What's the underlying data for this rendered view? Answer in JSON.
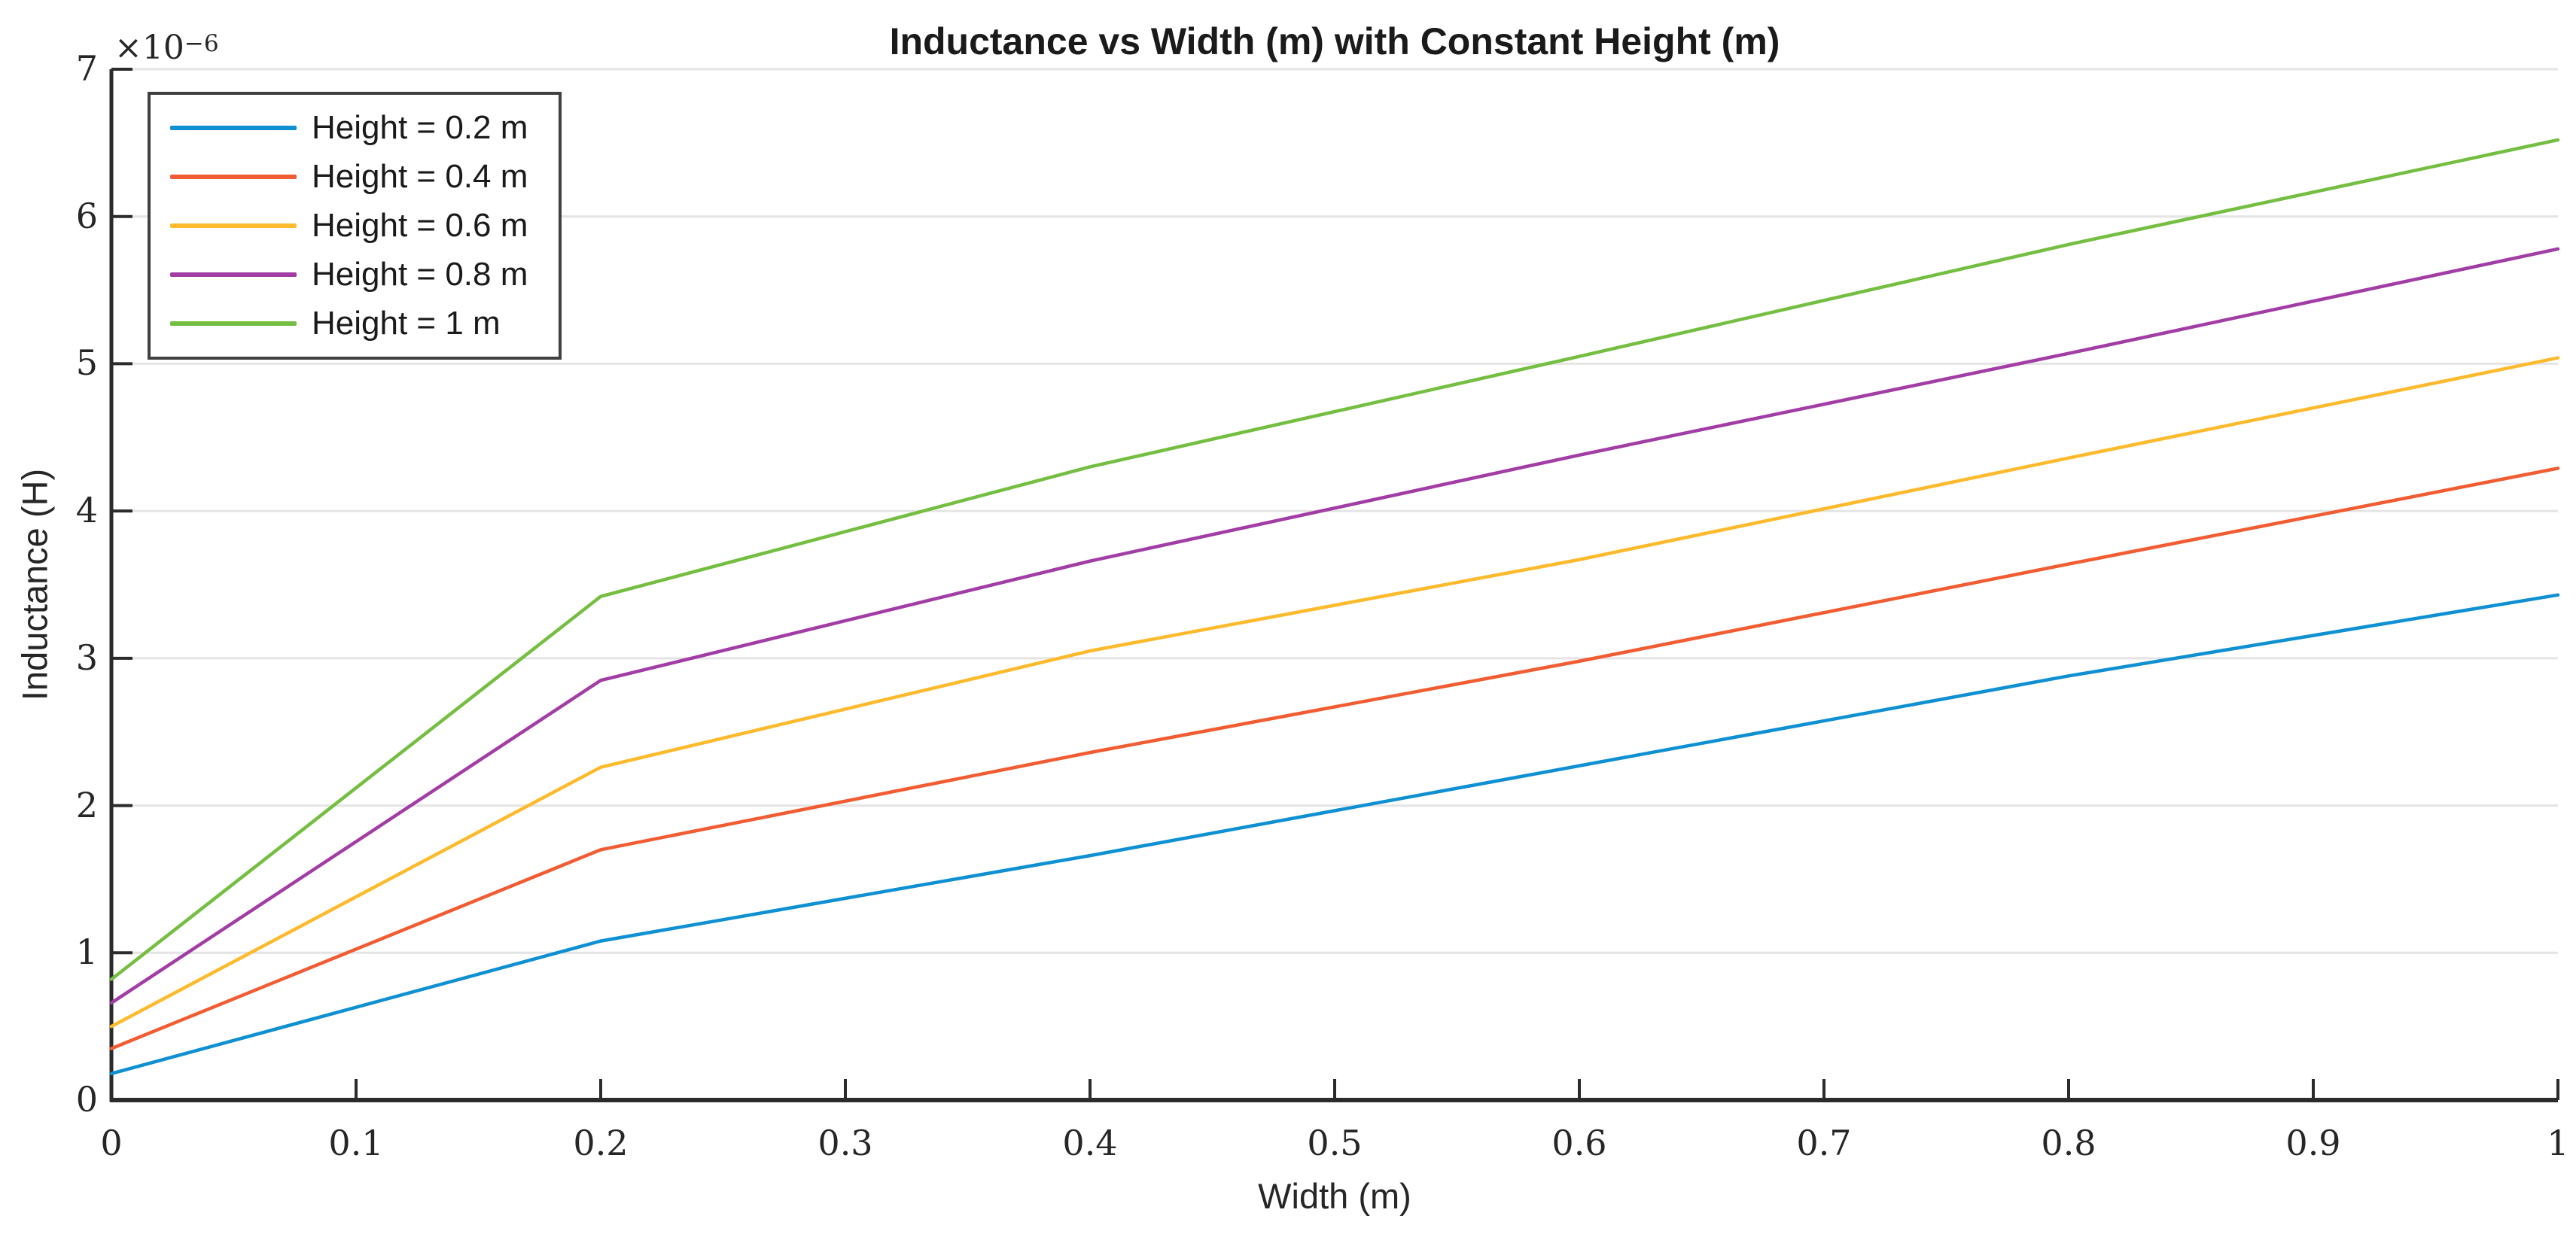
{
  "title": "Inductance vs Width (m) with Constant Height (m)",
  "axes": {
    "x_label": "Width (m)",
    "y_label": "Inductance (H)",
    "y_exponent_base": "×10",
    "y_exponent_power": "−6"
  },
  "legend": {
    "entries": [
      {
        "label": "Height = 0.2 m",
        "color": "#0E90D2"
      },
      {
        "label": "Height = 0.4 m",
        "color": "#F25C32"
      },
      {
        "label": "Height = 0.6 m",
        "color": "#FDBA2C"
      },
      {
        "label": "Height = 0.8 m",
        "color": "#A23DA5"
      },
      {
        "label": "Height = 1 m",
        "color": "#74BE41"
      }
    ]
  },
  "chart_data": {
    "type": "line",
    "title": "Inductance vs Width (m) with Constant Height (m)",
    "xlabel": "Width (m)",
    "ylabel": "Inductance (H)",
    "y_unit_note": "y values are in units of 1e-6 H (axis shows ×10⁻⁶ multiplier)",
    "xlim": [
      0,
      1
    ],
    "ylim_x1e6": [
      0,
      7
    ],
    "grid": "horizontal-only",
    "legend_position": "top-left-inside",
    "x": [
      0,
      0.2,
      0.4,
      0.6,
      0.8,
      1.0
    ],
    "series": [
      {
        "name": "Height = 0.2 m",
        "color": "#0E90D2",
        "values_x1e6": [
          0.18,
          1.08,
          1.66,
          2.27,
          2.88,
          3.43
        ]
      },
      {
        "name": "Height = 0.4 m",
        "color": "#F25C32",
        "values_x1e6": [
          0.35,
          1.7,
          2.36,
          2.98,
          3.64,
          4.29
        ]
      },
      {
        "name": "Height = 0.6 m",
        "color": "#FDBA2C",
        "values_x1e6": [
          0.5,
          2.26,
          3.05,
          3.67,
          4.36,
          5.04
        ]
      },
      {
        "name": "Height = 0.8 m",
        "color": "#A23DA5",
        "values_x1e6": [
          0.66,
          2.85,
          3.66,
          4.38,
          5.07,
          5.78
        ]
      },
      {
        "name": "Height = 1 m",
        "color": "#74BE41",
        "values_x1e6": [
          0.82,
          3.42,
          4.3,
          5.05,
          5.81,
          6.52
        ]
      }
    ],
    "x_tick_labels": [
      "0",
      "0.1",
      "0.2",
      "0.3",
      "0.4",
      "0.5",
      "0.6",
      "0.7",
      "0.8",
      "0.9",
      "1"
    ],
    "y_tick_labels": [
      "0",
      "1",
      "2",
      "3",
      "4",
      "5",
      "6",
      "7"
    ]
  }
}
